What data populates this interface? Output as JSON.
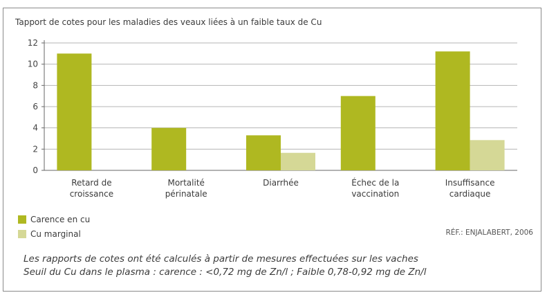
{
  "chart_data": {
    "type": "bar",
    "title": "Tapport de cotes pour les maladies des veaux liées à un faible taux de Cu",
    "categories": [
      [
        "Retard de",
        "croissance"
      ],
      [
        "Mortalité",
        "périnatale"
      ],
      [
        "Diarrhée"
      ],
      [
        "Échec de la",
        "vaccination"
      ],
      [
        "Insuffisance",
        "cardiaque"
      ]
    ],
    "series": [
      {
        "name": "Carence en cu",
        "color": "#afb821",
        "values": [
          11.0,
          4.0,
          3.3,
          7.0,
          11.2
        ]
      },
      {
        "name": "Cu marginal",
        "color": "#d5d896",
        "values": [
          null,
          null,
          1.65,
          null,
          2.85
        ]
      }
    ],
    "yticks": [
      0,
      2,
      4,
      6,
      8,
      10,
      12
    ],
    "ylim": [
      0,
      12
    ],
    "grid": true,
    "legend": "bottom-left"
  },
  "reference": "RÉF.: ENJALABERT, 2006",
  "notes": [
    "Les rapports de cotes ont été calculés à partir de mesures effectuées sur les vaches",
    "Seuil du Cu dans le plasma : carence : <0,72 mg de Zn/l ; Faible 0,78-0,92 mg de Zn/l"
  ],
  "colors": {
    "grid": "#b5b5b5",
    "axis": "#666666"
  }
}
